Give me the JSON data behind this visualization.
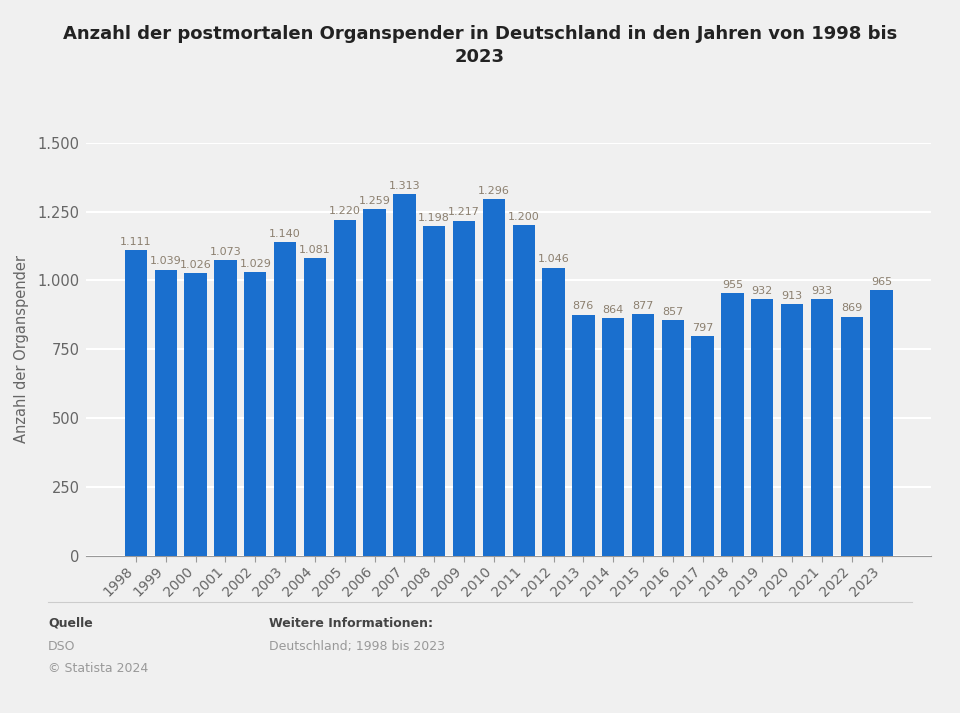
{
  "title_line1": "Anzahl der postmortalen Organspender in Deutschland in den Jahren von 1998 bis",
  "title_line2": "2023",
  "ylabel": "Anzahl der Organspender",
  "years": [
    1998,
    1999,
    2000,
    2001,
    2002,
    2003,
    2004,
    2005,
    2006,
    2007,
    2008,
    2009,
    2010,
    2011,
    2012,
    2013,
    2014,
    2015,
    2016,
    2017,
    2018,
    2019,
    2020,
    2021,
    2022,
    2023
  ],
  "values": [
    1111,
    1039,
    1026,
    1073,
    1029,
    1140,
    1081,
    1220,
    1259,
    1313,
    1198,
    1217,
    1296,
    1200,
    1046,
    876,
    864,
    877,
    857,
    797,
    955,
    932,
    913,
    933,
    869,
    965
  ],
  "bar_color": "#1a6fce",
  "label_color": "#8c8070",
  "background_color": "#f0f0f0",
  "plot_bg_color": "#f0f0f0",
  "grid_color": "#ffffff",
  "ylim": [
    0,
    1500
  ],
  "yticks": [
    0,
    250,
    500,
    750,
    1000,
    1250,
    1500
  ],
  "ytick_labels": [
    "0",
    "250",
    "500",
    "750",
    "1.000",
    "1.250",
    "1.500"
  ],
  "footer_source_label": "Quelle",
  "footer_source": "DSO",
  "footer_copyright": "© Statista 2024",
  "footer_info_label": "Weitere Informationen:",
  "footer_info": "Deutschland; 1998 bis 2023",
  "value_labels": {
    "1998": "1.111",
    "1999": "1.039",
    "2000": "1.026",
    "2001": "1.073",
    "2002": "1.029",
    "2003": "1.140",
    "2004": "1.081",
    "2005": "1.220",
    "2006": "1.259",
    "2007": "1.313",
    "2008": "1.198",
    "2009": "1.217",
    "2010": "1.296",
    "2011": "1.200",
    "2012": "1.046",
    "2013": "876",
    "2014": "864",
    "2015": "877",
    "2016": "857",
    "2017": "797",
    "2018": "955",
    "2019": "932",
    "2020": "913",
    "2021": "933",
    "2022": "869",
    "2023": "965"
  }
}
